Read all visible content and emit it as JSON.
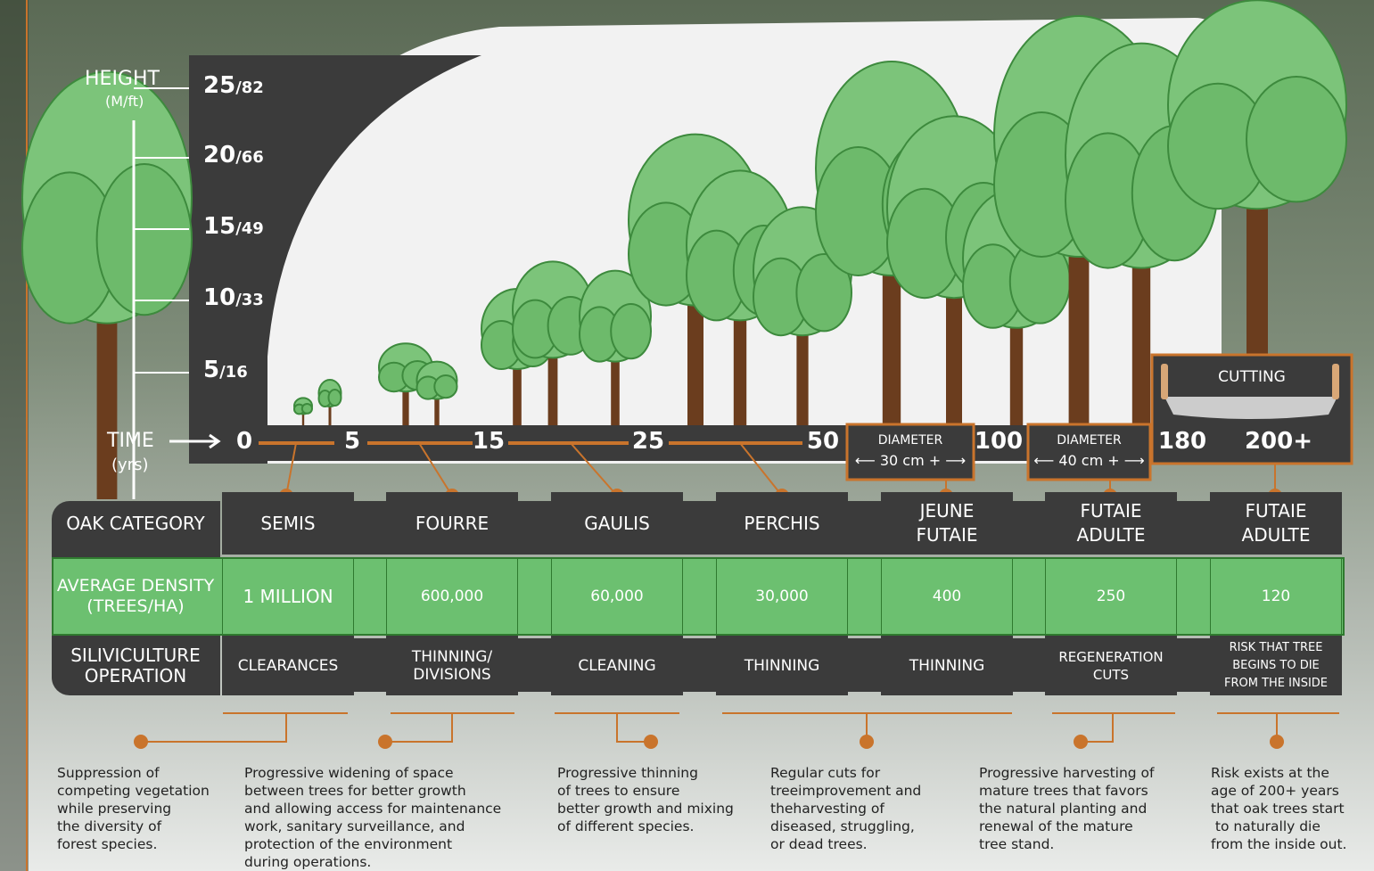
{
  "height_axis": {
    "label": "HEIGHT",
    "unit": "(M/ft)",
    "ticks": [
      {
        "m": "25",
        "ft": "/82"
      },
      {
        "m": "20",
        "ft": "/66"
      },
      {
        "m": "15",
        "ft": "/49"
      },
      {
        "m": "10",
        "ft": "/33"
      },
      {
        "m": "5",
        "ft": "/16"
      }
    ]
  },
  "time_axis": {
    "label": "TIME",
    "unit": "(yrs)",
    "ticks": [
      "0",
      "5",
      "15",
      "25",
      "50",
      "100",
      "180",
      "200+"
    ]
  },
  "diameter_boxes": [
    {
      "title": "DIAMETER",
      "value": "⟵ 30 cm + ⟶"
    },
    {
      "title": "DIAMETER",
      "value": "⟵ 40 cm + ⟶"
    }
  ],
  "cutting": "CUTTING",
  "table": {
    "row_headers": [
      "OAK CATEGORY",
      "AVERAGE DENSITY (TREES/HA)",
      "SILIVICULTURE OPERATION"
    ],
    "columns": [
      {
        "category": "SEMIS",
        "density": "1 MILLION",
        "operation": "CLEARANCES"
      },
      {
        "category": "FOURRE",
        "density": "600,000",
        "operation": "THINNING/ DIVISIONS"
      },
      {
        "category": "GAULIS",
        "density": "60,000",
        "operation": "CLEANING"
      },
      {
        "category": "PERCHIS",
        "density": "30,000",
        "operation": "THINNING"
      },
      {
        "category": "JEUNE FUTAIE",
        "density": "400",
        "operation": "THINNING"
      },
      {
        "category": "FUTAIE ADULTE",
        "density": "250",
        "operation": "REGENERATION CUTS"
      },
      {
        "category": "FUTAIE ADULTE",
        "density": "120",
        "operation": "RISK THAT TREE BEGINS TO DIE FROM THE INSIDE"
      }
    ]
  },
  "descriptions": [
    [
      "Suppression of",
      "competing vegetation",
      "while preserving",
      "the diversity of",
      "forest species."
    ],
    [
      "Progressive widening of space",
      "between trees for better growth",
      "and allowing access for maintenance",
      "work, sanitary surveillance, and",
      "protection of the environment",
      "during operations."
    ],
    [
      "Progressive thinning",
      "of trees to ensure",
      "better growth and mixing",
      "of different species."
    ],
    [
      "Regular cuts for",
      "treeimprovement and",
      "theharvesting of",
      "diseased, struggling,",
      "or dead trees."
    ],
    [
      "Progressive harvesting of",
      "mature trees that favors",
      "the natural planting and",
      "renewal of the mature",
      "tree stand."
    ],
    [
      "Risk exists at the",
      "age of 200+ years",
      "that oak trees start",
      " to naturally die",
      "from the inside out."
    ]
  ]
}
